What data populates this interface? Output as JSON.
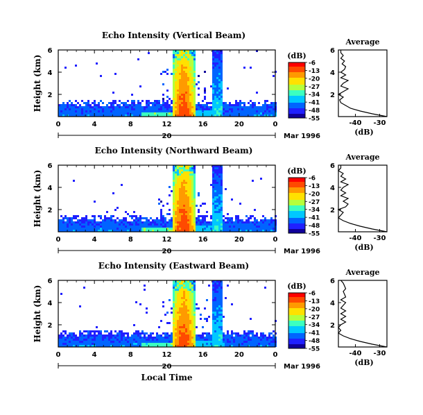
{
  "figure": {
    "bottom_xlabel": "Local Time",
    "date_label": "Mar 1996",
    "avg_xlabel": "(dB)",
    "colorbar_unit": "(dB)"
  },
  "colorbar": {
    "ticks": [
      -6,
      -13,
      -20,
      -27,
      -34,
      -41,
      -48,
      -55
    ],
    "colors": [
      "#ff0000",
      "#ff4a00",
      "#ff9a00",
      "#ffe100",
      "#b5ff3c",
      "#3cffc0",
      "#00c8ff",
      "#0064ff",
      "#2020ff",
      "#10009a"
    ]
  },
  "chart_data": [
    {
      "type": "heatmap",
      "title": "Echo Intensity (Vertical Beam)",
      "ylabel": "Height (km)",
      "xlim": [
        0,
        24
      ],
      "ylim": [
        0,
        6
      ],
      "x_ticks": [
        "0",
        "4",
        "8",
        "12",
        "16",
        "20",
        "0"
      ],
      "y_ticks": [
        "2",
        "4",
        "6"
      ],
      "day_tick": "20",
      "date_label": "Mar 1996",
      "colorbar": {
        "unit": "(dB)",
        "range": [
          -55,
          -6
        ]
      },
      "features": [
        {
          "x": [
            12.5,
            15.0
          ],
          "height_top": 6,
          "peak_db": -6
        },
        {
          "x": [
            17.0,
            18.0
          ],
          "height_top": 6,
          "peak_db": -30
        },
        {
          "x": [
            0,
            24
          ],
          "height_top": 1.5,
          "db": -48
        }
      ],
      "average_profile": {
        "title": "Average",
        "xlabel": "(dB)",
        "x_ticks": [
          "-40",
          "-30"
        ],
        "y_ticks": [
          "2",
          "4",
          "6"
        ],
        "height_km": [
          0.0,
          0.25,
          0.5,
          0.75,
          1.0,
          1.25,
          1.5,
          1.75,
          2.0,
          2.25,
          2.5,
          2.75,
          3.0,
          3.25,
          3.5,
          3.75,
          4.0,
          4.25,
          4.5,
          4.75,
          5.0,
          5.25,
          5.5,
          5.75,
          6.0
        ],
        "db": [
          -27,
          -33,
          -38,
          -42,
          -44,
          -46,
          -46.5,
          -45,
          -47,
          -45,
          -43,
          -46,
          -45,
          -43,
          -46,
          -44,
          -46,
          -44.5,
          -44,
          -45.5,
          -44.5,
          -46,
          -45,
          -46,
          -46
        ]
      }
    },
    {
      "type": "heatmap",
      "title": "Echo Intensity (Northward Beam)",
      "ylabel": "Height (km)",
      "xlim": [
        0,
        24
      ],
      "ylim": [
        0,
        6
      ],
      "x_ticks": [
        "0",
        "4",
        "8",
        "12",
        "16",
        "20",
        "0"
      ],
      "y_ticks": [
        "2",
        "4",
        "6"
      ],
      "day_tick": "20",
      "date_label": "Mar 1996",
      "colorbar": {
        "unit": "(dB)",
        "range": [
          -55,
          -6
        ]
      },
      "features": [
        {
          "x": [
            12.5,
            15.0
          ],
          "height_top": 6,
          "peak_db": -6
        },
        {
          "x": [
            17.0,
            18.0
          ],
          "height_top": 6,
          "peak_db": -30
        },
        {
          "x": [
            0,
            24
          ],
          "height_top": 1.5,
          "db": -48
        }
      ],
      "average_profile": {
        "title": "Average",
        "xlabel": "(dB)",
        "x_ticks": [
          "-40",
          "-30"
        ],
        "y_ticks": [
          "2",
          "4",
          "6"
        ],
        "height_km": [
          0.0,
          0.25,
          0.5,
          0.75,
          1.0,
          1.25,
          1.5,
          1.75,
          2.0,
          2.25,
          2.5,
          2.75,
          3.0,
          3.25,
          3.5,
          3.75,
          4.0,
          4.25,
          4.5,
          4.75,
          5.0,
          5.25,
          5.5,
          5.75,
          6.0
        ],
        "db": [
          -27,
          -33,
          -38,
          -42,
          -45,
          -47,
          -46,
          -45,
          -47,
          -44,
          -43,
          -45,
          -43,
          -46,
          -44,
          -46,
          -45,
          -43,
          -46,
          -44,
          -46,
          -45,
          -47,
          -46,
          -46
        ]
      }
    },
    {
      "type": "heatmap",
      "title": "Echo Intensity (Eastward Beam)",
      "ylabel": "Height (km)",
      "xlim": [
        0,
        24
      ],
      "ylim": [
        0,
        6
      ],
      "x_ticks": [
        "0",
        "4",
        "8",
        "12",
        "16",
        "20",
        "0"
      ],
      "y_ticks": [
        "2",
        "4",
        "6"
      ],
      "day_tick": "20",
      "date_label": "Mar 1996",
      "colorbar": {
        "unit": "(dB)",
        "range": [
          -55,
          -6
        ]
      },
      "features": [
        {
          "x": [
            12.5,
            15.0
          ],
          "height_top": 6,
          "peak_db": -6
        },
        {
          "x": [
            17.0,
            18.0
          ],
          "height_top": 6,
          "peak_db": -30
        },
        {
          "x": [
            0,
            24
          ],
          "height_top": 1.5,
          "db": -48
        }
      ],
      "average_profile": {
        "title": "Average",
        "xlabel": "(dB)",
        "x_ticks": [
          "-40",
          "-30"
        ],
        "y_ticks": [
          "2",
          "4",
          "6"
        ],
        "height_km": [
          0.0,
          0.25,
          0.5,
          0.75,
          1.0,
          1.25,
          1.5,
          1.75,
          2.0,
          2.25,
          2.5,
          2.75,
          3.0,
          3.25,
          3.5,
          3.75,
          4.0,
          4.25,
          4.5,
          4.75,
          5.0,
          5.25,
          5.5,
          5.75,
          6.0
        ],
        "db": [
          -27,
          -33,
          -38,
          -42,
          -45,
          -47,
          -46,
          -47,
          -46,
          -44,
          -46,
          -44,
          -46,
          -44,
          -46,
          -45,
          -44,
          -46,
          -44,
          -44.5,
          -45,
          -44,
          -44.5,
          -45,
          -46
        ]
      }
    }
  ]
}
